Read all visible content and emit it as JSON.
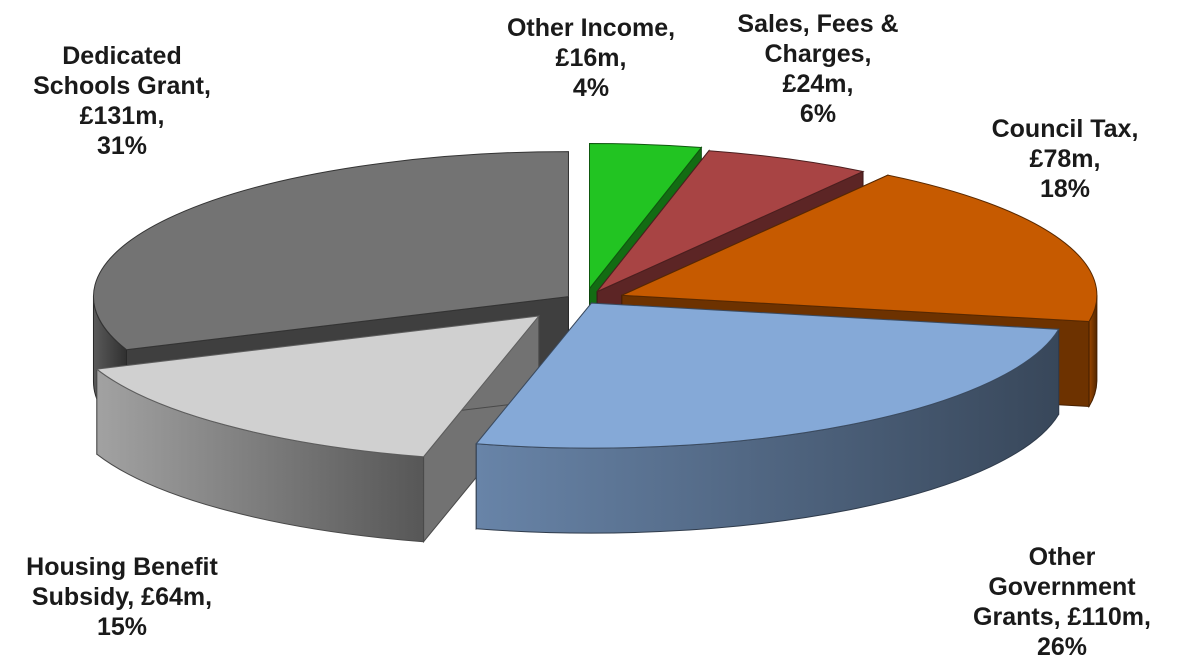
{
  "chart_data": {
    "type": "pie",
    "style": "3d-exploded",
    "title": "",
    "legend": "none",
    "slices": [
      {
        "name": "Other Income",
        "value": 16,
        "percent": 4,
        "value_label": "£16m",
        "percent_label": "4%",
        "color": "#22c422",
        "label_lines": [
          "Other Income,",
          "£16m,",
          "4%"
        ]
      },
      {
        "name": "Sales, Fees & Charges",
        "value": 24,
        "percent": 6,
        "value_label": "£24m",
        "percent_label": "6%",
        "color": "#a84444",
        "label_lines": [
          "Sales, Fees &",
          "Charges,",
          "£24m,",
          "6%"
        ]
      },
      {
        "name": "Council Tax",
        "value": 78,
        "percent": 18,
        "value_label": "£78m",
        "percent_label": "18%",
        "color": "#c65a00",
        "label_lines": [
          "Council Tax,",
          "£78m,",
          "18%"
        ]
      },
      {
        "name": "Other Government Grants",
        "value": 110,
        "percent": 26,
        "value_label": "£110m",
        "percent_label": "26%",
        "color": "#85a9d7",
        "label_lines": [
          "Other",
          "Government",
          "Grants, £110m,",
          "26%"
        ]
      },
      {
        "name": "Housing Benefit Subsidy",
        "value": 64,
        "percent": 15,
        "value_label": "£64m",
        "percent_label": "15%",
        "color": "#d0d0d0",
        "label_lines": [
          "Housing Benefit",
          "Subsidy, £64m,",
          "15%"
        ]
      },
      {
        "name": "Dedicated Schools Grant",
        "value": 131,
        "percent": 31,
        "value_label": "£131m",
        "percent_label": "31%",
        "color": "#737373",
        "label_lines": [
          "Dedicated",
          "Schools Grant,",
          "£131m,",
          "31%"
        ]
      }
    ]
  }
}
